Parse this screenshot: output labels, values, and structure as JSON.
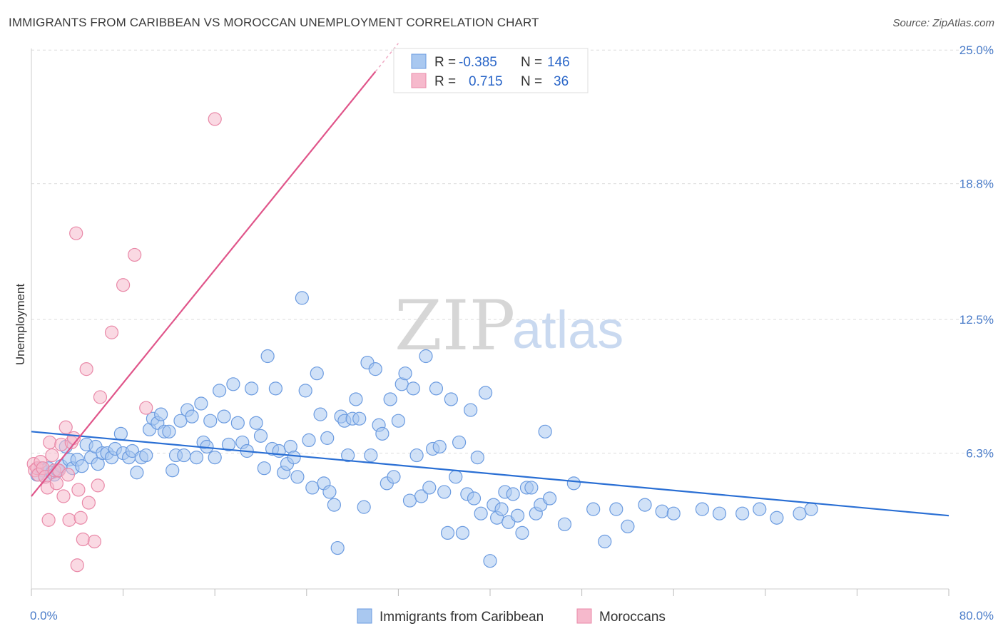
{
  "title": "IMMIGRANTS FROM CARIBBEAN VS MOROCCAN UNEMPLOYMENT CORRELATION CHART",
  "source": "Source: ZipAtlas.com",
  "watermark": {
    "zip": "ZIP",
    "atlas": "atlas"
  },
  "colors": {
    "blue_fill": "#a9c8f0",
    "blue_stroke": "#6b9be0",
    "blue_line": "#2a6fd4",
    "pink_fill": "#f6b9cc",
    "pink_stroke": "#e989a8",
    "pink_line": "#e0558a",
    "grid": "#dcdcdc",
    "axis_text": "#4a7cc9"
  },
  "legend_top": [
    {
      "r_label": "R =",
      "r_value": "-0.385",
      "n_label": "N =",
      "n_value": "146"
    },
    {
      "r_label": "R =",
      "r_value": "0.715",
      "n_label": "N =",
      "n_value": "36"
    }
  ],
  "chart_data": {
    "type": "scatter",
    "title": "IMMIGRANTS FROM CARIBBEAN VS MOROCCAN UNEMPLOYMENT CORRELATION CHART",
    "xlabel": "",
    "ylabel": "Unemployment",
    "xlim": [
      0,
      80
    ],
    "ylim": [
      0,
      26
    ],
    "x_tick_labels": [
      "0.0%",
      "80.0%"
    ],
    "y_ticks": [
      6.3,
      12.5,
      18.8,
      25.0
    ],
    "y_tick_labels": [
      "6.3%",
      "12.5%",
      "18.8%",
      "25.0%"
    ],
    "grid": true,
    "legend_placement": "top-center",
    "series": [
      {
        "name": "Immigrants from Caribbean",
        "r": -0.385,
        "n": 146,
        "trend": {
          "x0": 0,
          "y0": 7.3,
          "x1": 80,
          "y1": 3.4
        },
        "points": [
          [
            0.5,
            5.3
          ],
          [
            0.8,
            5.6
          ],
          [
            1.0,
            5.5
          ],
          [
            1.2,
            5.2
          ],
          [
            1.5,
            5.6
          ],
          [
            1.8,
            5.4
          ],
          [
            2.0,
            5.3
          ],
          [
            2.3,
            5.5
          ],
          [
            2.6,
            5.7
          ],
          [
            3.0,
            6.6
          ],
          [
            3.3,
            6.0
          ],
          [
            3.6,
            5.6
          ],
          [
            4.0,
            6.0
          ],
          [
            4.4,
            5.7
          ],
          [
            4.8,
            6.7
          ],
          [
            5.2,
            6.1
          ],
          [
            5.6,
            6.6
          ],
          [
            5.8,
            5.8
          ],
          [
            6.2,
            6.3
          ],
          [
            6.6,
            6.3
          ],
          [
            7.0,
            6.1
          ],
          [
            7.3,
            6.5
          ],
          [
            7.8,
            7.2
          ],
          [
            8.0,
            6.3
          ],
          [
            8.5,
            6.1
          ],
          [
            8.8,
            6.4
          ],
          [
            9.2,
            5.4
          ],
          [
            9.6,
            6.1
          ],
          [
            10.0,
            6.2
          ],
          [
            10.3,
            7.4
          ],
          [
            10.6,
            7.9
          ],
          [
            11.0,
            7.7
          ],
          [
            11.3,
            8.1
          ],
          [
            11.6,
            7.3
          ],
          [
            12.0,
            7.3
          ],
          [
            12.3,
            5.5
          ],
          [
            12.6,
            6.2
          ],
          [
            13.0,
            7.8
          ],
          [
            13.3,
            6.2
          ],
          [
            13.6,
            8.3
          ],
          [
            14.0,
            8.0
          ],
          [
            14.4,
            6.1
          ],
          [
            14.8,
            8.6
          ],
          [
            15.0,
            6.8
          ],
          [
            15.3,
            6.6
          ],
          [
            15.6,
            7.8
          ],
          [
            16.0,
            6.1
          ],
          [
            16.4,
            9.2
          ],
          [
            16.8,
            8.0
          ],
          [
            17.2,
            6.7
          ],
          [
            17.6,
            9.5
          ],
          [
            18.0,
            7.7
          ],
          [
            18.4,
            6.8
          ],
          [
            18.8,
            6.4
          ],
          [
            19.2,
            9.3
          ],
          [
            19.6,
            7.7
          ],
          [
            20.0,
            7.1
          ],
          [
            20.3,
            5.6
          ],
          [
            20.6,
            10.8
          ],
          [
            21.0,
            6.5
          ],
          [
            21.3,
            9.3
          ],
          [
            21.6,
            6.4
          ],
          [
            22.0,
            5.4
          ],
          [
            22.3,
            5.8
          ],
          [
            22.6,
            6.6
          ],
          [
            22.9,
            6.1
          ],
          [
            23.2,
            5.2
          ],
          [
            23.6,
            13.5
          ],
          [
            23.9,
            9.2
          ],
          [
            24.2,
            6.9
          ],
          [
            24.5,
            4.7
          ],
          [
            24.9,
            10.0
          ],
          [
            25.2,
            8.1
          ],
          [
            25.5,
            4.9
          ],
          [
            25.8,
            7.0
          ],
          [
            26.0,
            4.5
          ],
          [
            26.4,
            3.9
          ],
          [
            26.7,
            1.9
          ],
          [
            27.0,
            8.0
          ],
          [
            27.3,
            7.8
          ],
          [
            27.6,
            6.2
          ],
          [
            28.0,
            7.9
          ],
          [
            28.3,
            8.8
          ],
          [
            28.6,
            7.9
          ],
          [
            29.0,
            3.8
          ],
          [
            29.3,
            10.5
          ],
          [
            29.6,
            6.2
          ],
          [
            30.0,
            10.2
          ],
          [
            30.3,
            7.6
          ],
          [
            30.6,
            7.2
          ],
          [
            31.0,
            4.9
          ],
          [
            31.3,
            8.8
          ],
          [
            31.6,
            5.2
          ],
          [
            32.0,
            7.8
          ],
          [
            32.3,
            9.5
          ],
          [
            32.6,
            10.0
          ],
          [
            33.0,
            4.1
          ],
          [
            33.3,
            9.3
          ],
          [
            33.6,
            6.2
          ],
          [
            34.0,
            4.3
          ],
          [
            34.4,
            10.8
          ],
          [
            34.7,
            4.7
          ],
          [
            35.0,
            6.5
          ],
          [
            35.3,
            9.3
          ],
          [
            35.6,
            6.6
          ],
          [
            36.0,
            4.5
          ],
          [
            36.3,
            2.6
          ],
          [
            36.6,
            8.8
          ],
          [
            37.0,
            5.2
          ],
          [
            37.3,
            6.8
          ],
          [
            37.6,
            2.6
          ],
          [
            38.0,
            4.4
          ],
          [
            38.3,
            8.3
          ],
          [
            38.6,
            4.2
          ],
          [
            38.9,
            6.1
          ],
          [
            39.2,
            3.5
          ],
          [
            39.6,
            9.1
          ],
          [
            40.0,
            1.3
          ],
          [
            40.3,
            3.9
          ],
          [
            40.6,
            3.3
          ],
          [
            41.0,
            3.7
          ],
          [
            41.3,
            4.5
          ],
          [
            41.6,
            3.1
          ],
          [
            42.0,
            4.4
          ],
          [
            42.4,
            3.4
          ],
          [
            42.8,
            2.6
          ],
          [
            43.2,
            4.7
          ],
          [
            43.6,
            4.7
          ],
          [
            44.0,
            3.5
          ],
          [
            44.4,
            3.9
          ],
          [
            44.8,
            7.3
          ],
          [
            45.2,
            4.2
          ],
          [
            46.5,
            3.0
          ],
          [
            47.3,
            4.9
          ],
          [
            49.0,
            3.7
          ],
          [
            50.0,
            2.2
          ],
          [
            51.0,
            3.7
          ],
          [
            52.0,
            2.9
          ],
          [
            53.5,
            3.9
          ],
          [
            55.0,
            3.6
          ],
          [
            56.0,
            3.5
          ],
          [
            58.5,
            3.7
          ],
          [
            60.0,
            3.5
          ],
          [
            62.0,
            3.5
          ],
          [
            63.5,
            3.7
          ],
          [
            65.0,
            3.3
          ],
          [
            67.0,
            3.5
          ],
          [
            68.0,
            3.7
          ]
        ]
      },
      {
        "name": "Moroccans",
        "r": 0.715,
        "n": 36,
        "trend": {
          "x0": 0,
          "y0": 4.3,
          "x1": 30,
          "y1": 24.0
        },
        "points": [
          [
            0.2,
            5.8
          ],
          [
            0.3,
            5.5
          ],
          [
            0.5,
            5.6
          ],
          [
            0.6,
            5.3
          ],
          [
            0.8,
            5.9
          ],
          [
            1.0,
            5.6
          ],
          [
            1.2,
            5.2
          ],
          [
            1.4,
            4.7
          ],
          [
            1.5,
            3.2
          ],
          [
            1.6,
            6.8
          ],
          [
            1.8,
            6.2
          ],
          [
            2.0,
            5.5
          ],
          [
            2.2,
            4.9
          ],
          [
            2.4,
            5.5
          ],
          [
            2.6,
            6.7
          ],
          [
            2.8,
            4.3
          ],
          [
            3.0,
            7.5
          ],
          [
            3.2,
            5.3
          ],
          [
            3.3,
            3.2
          ],
          [
            3.5,
            6.8
          ],
          [
            3.7,
            7.0
          ],
          [
            3.9,
            16.5
          ],
          [
            4.0,
            1.1
          ],
          [
            4.1,
            4.6
          ],
          [
            4.3,
            3.3
          ],
          [
            4.5,
            2.3
          ],
          [
            4.8,
            10.2
          ],
          [
            5.0,
            4.0
          ],
          [
            5.5,
            2.2
          ],
          [
            5.8,
            4.8
          ],
          [
            6.0,
            8.9
          ],
          [
            7.0,
            11.9
          ],
          [
            8.0,
            14.1
          ],
          [
            9.0,
            15.5
          ],
          [
            10.0,
            8.4
          ],
          [
            16.0,
            21.8
          ]
        ]
      }
    ]
  },
  "bottom_legend": [
    "Immigrants from Caribbean",
    "Moroccans"
  ]
}
